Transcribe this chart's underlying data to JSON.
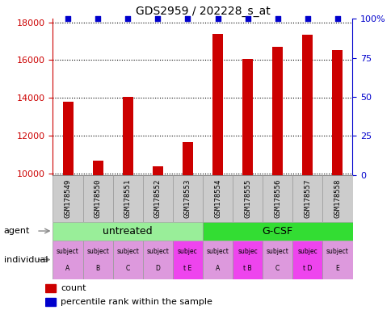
{
  "title": "GDS2959 / 202228_s_at",
  "samples": [
    "GSM178549",
    "GSM178550",
    "GSM178551",
    "GSM178552",
    "GSM178553",
    "GSM178554",
    "GSM178555",
    "GSM178556",
    "GSM178557",
    "GSM178558"
  ],
  "counts": [
    13800,
    10650,
    14050,
    10350,
    11650,
    17400,
    16050,
    16700,
    17350,
    16550
  ],
  "percentile_y": [
    100,
    100,
    100,
    100,
    100,
    100,
    100,
    100,
    100,
    100
  ],
  "bar_color": "#cc0000",
  "dot_color": "#0000cc",
  "ylim_left": [
    9900,
    18200
  ],
  "ylim_right": [
    0,
    100
  ],
  "yticks_left": [
    10000,
    12000,
    14000,
    16000,
    18000
  ],
  "ytick_labels_left": [
    "10000",
    "12000",
    "14000",
    "16000",
    "18000"
  ],
  "yticks_right": [
    0,
    25,
    50,
    75,
    100
  ],
  "ytick_labels_right": [
    "0",
    "25",
    "50",
    "75",
    "100%"
  ],
  "agent_groups": [
    {
      "label": "untreated",
      "color": "#99ee99",
      "start": 0,
      "end": 5
    },
    {
      "label": "G-CSF",
      "color": "#33dd33",
      "start": 5,
      "end": 10
    }
  ],
  "individuals": [
    [
      "subject",
      "A"
    ],
    [
      "subject",
      "B"
    ],
    [
      "subject",
      "C"
    ],
    [
      "subject",
      "D"
    ],
    [
      "subjec",
      "t E"
    ],
    [
      "subject",
      "A"
    ],
    [
      "subjec",
      "t B"
    ],
    [
      "subject",
      "C"
    ],
    [
      "subjec",
      "t D"
    ],
    [
      "subject",
      "E"
    ]
  ],
  "individual_colors": [
    "#dd99dd",
    "#dd99dd",
    "#dd99dd",
    "#dd99dd",
    "#ee44ee",
    "#dd99dd",
    "#ee44ee",
    "#dd99dd",
    "#ee44ee",
    "#dd99dd"
  ],
  "legend_count_color": "#cc0000",
  "legend_dot_color": "#0000cc",
  "sample_box_color": "#cccccc"
}
